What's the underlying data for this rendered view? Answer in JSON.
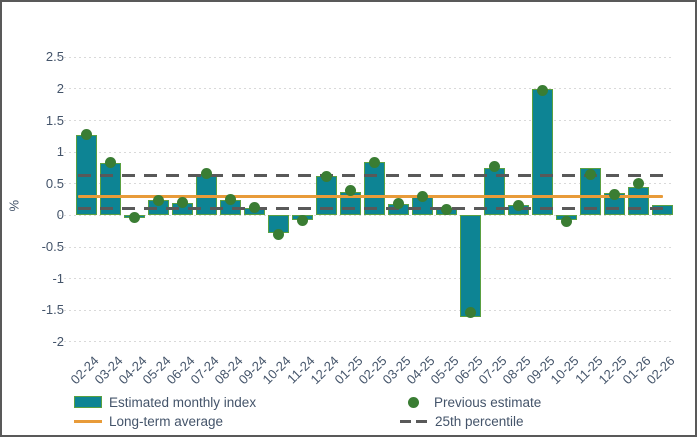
{
  "chart_data": {
    "type": "bar",
    "title": "",
    "xlabel": "",
    "ylabel": "%",
    "ylim": [
      -2,
      2.5
    ],
    "grid": true,
    "legend_position": "bottom",
    "yticks": [
      {
        "label": "2.5",
        "value": 2.5
      },
      {
        "label": "2",
        "value": 2
      },
      {
        "label": "1.5",
        "value": 1.5
      },
      {
        "label": "1",
        "value": 1
      },
      {
        "label": "0.5",
        "value": 0.5
      },
      {
        "label": "0",
        "value": 0
      },
      {
        "label": "-0.5",
        "value": -0.5
      },
      {
        "label": "-1",
        "value": -1
      },
      {
        "label": "-1.5",
        "value": -1.5
      },
      {
        "label": "-2",
        "value": -2
      }
    ],
    "categories": [
      "02-24",
      "03-24",
      "04-24",
      "05-24",
      "06-24",
      "07-24",
      "08-24",
      "09-24",
      "10-24",
      "11-24",
      "12-24",
      "01-25",
      "02-25",
      "03-25",
      "04-25",
      "05-25",
      "06-25",
      "07-25",
      "08-25",
      "09-25",
      "10-25",
      "11-25",
      "12-25",
      "01-26",
      "02-26"
    ],
    "series": [
      {
        "name": "Estimated monthly index",
        "type": "bar",
        "values": [
          1.27,
          0.83,
          -0.04,
          0.24,
          0.19,
          0.65,
          0.25,
          0.12,
          -0.28,
          -0.07,
          0.62,
          0.37,
          0.85,
          0.18,
          0.32,
          0.12,
          -1.6,
          0.75,
          0.16,
          2.0,
          -0.07,
          0.75,
          0.35,
          0.45,
          0.16
        ]
      },
      {
        "name": "Previous estimate",
        "type": "scatter",
        "values": [
          1.28,
          0.84,
          -0.03,
          0.24,
          0.2,
          0.66,
          0.25,
          0.12,
          -0.3,
          -0.08,
          0.62,
          0.4,
          0.84,
          0.19,
          0.3,
          0.1,
          -1.53,
          0.78,
          0.16,
          1.98,
          -0.1,
          0.65,
          0.33,
          0.5,
          null
        ]
      }
    ],
    "reference_lines": [
      {
        "name": "Long-term average",
        "value": 0.3,
        "style": "solid"
      },
      {
        "name": "25th percentile",
        "value": 0.11,
        "style": "dashed"
      },
      {
        "name": "unlabeled dashed line",
        "value": 0.63,
        "style": "dashed"
      }
    ]
  },
  "legend": {
    "items": [
      {
        "label": "Estimated monthly index",
        "swatch": "bar"
      },
      {
        "label": "Previous estimate",
        "swatch": "dot"
      },
      {
        "label": "Long-term average",
        "swatch": "line"
      },
      {
        "label": "25th percentile",
        "swatch": "dash"
      }
    ]
  },
  "colors": {
    "bar_fill": "#0D8494",
    "bar_border": "#5AA041",
    "dot": "#3A7D33",
    "long_term_average_line": "#E89B39",
    "percentile_dash_line": "#595959",
    "gridline": "#D9D9D9",
    "axis_text": "#44546A",
    "legend_text": "#44546A",
    "frame_border": "#595959"
  }
}
